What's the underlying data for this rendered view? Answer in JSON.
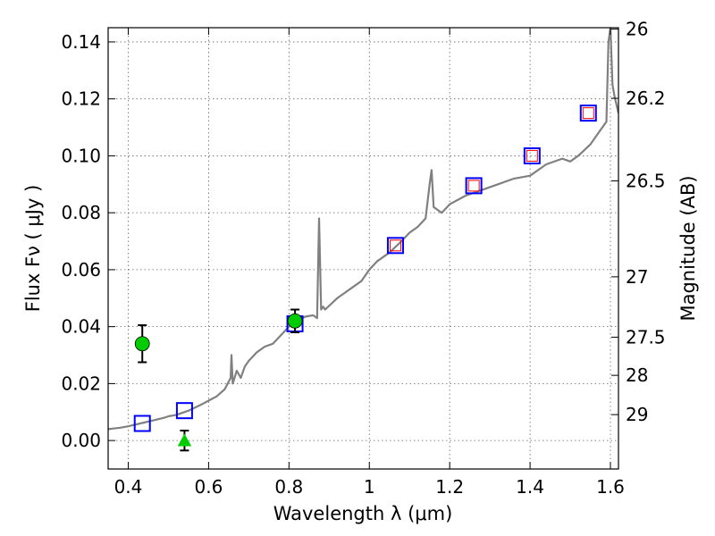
{
  "chart_data": {
    "type": "scatter",
    "title": "",
    "xlabel": "Wavelength  λ (μm)",
    "ylabel": "Flux  Fν  ( μJy )",
    "y2label": "Magnitude (AB)",
    "xlim": [
      0.35,
      1.62
    ],
    "ylim": [
      -0.01,
      0.145
    ],
    "grid": true,
    "x_ticks": [
      0.4,
      0.6,
      0.8,
      1.0,
      1.2,
      1.4,
      1.6
    ],
    "x_tick_labels": [
      "0.4",
      "0.6",
      "0.8",
      "1",
      "1.2",
      "1.4",
      "1.6"
    ],
    "y_ticks": [
      0.0,
      0.02,
      0.04,
      0.06,
      0.08,
      0.1,
      0.12,
      0.14
    ],
    "y_tick_labels": [
      "0.00",
      "0.02",
      "0.04",
      "0.06",
      "0.08",
      "0.10",
      "0.12",
      "0.14"
    ],
    "y2_ticks": [
      {
        "flux": 0.1445,
        "label": "26"
      },
      {
        "flux": 0.1202,
        "label": "26.2"
      },
      {
        "flux": 0.0912,
        "label": "26.5"
      },
      {
        "flux": 0.0575,
        "label": "27"
      },
      {
        "flux": 0.0363,
        "label": "27.5"
      },
      {
        "flux": 0.0229,
        "label": "28"
      },
      {
        "flux": 0.0091,
        "label": "29"
      }
    ],
    "series": [
      {
        "name": "model spectrum",
        "kind": "line",
        "color": "#808080",
        "x": [
          0.35,
          0.38,
          0.4,
          0.43,
          0.46,
          0.49,
          0.5,
          0.52,
          0.55,
          0.58,
          0.6,
          0.62,
          0.64,
          0.655,
          0.657,
          0.66,
          0.67,
          0.68,
          0.69,
          0.7,
          0.72,
          0.74,
          0.76,
          0.78,
          0.8,
          0.82,
          0.84,
          0.86,
          0.87,
          0.875,
          0.88,
          0.885,
          0.89,
          0.92,
          0.95,
          0.98,
          1.0,
          1.02,
          1.05,
          1.08,
          1.1,
          1.12,
          1.14,
          1.15,
          1.155,
          1.16,
          1.17,
          1.18,
          1.2,
          1.24,
          1.28,
          1.32,
          1.36,
          1.4,
          1.44,
          1.48,
          1.5,
          1.52,
          1.55,
          1.57,
          1.59,
          1.595,
          1.6,
          1.605,
          1.61,
          1.62
        ],
        "y": [
          0.004,
          0.0045,
          0.005,
          0.006,
          0.007,
          0.008,
          0.0085,
          0.009,
          0.0105,
          0.0125,
          0.014,
          0.0155,
          0.018,
          0.022,
          0.03,
          0.02,
          0.0245,
          0.022,
          0.026,
          0.028,
          0.031,
          0.033,
          0.034,
          0.037,
          0.04,
          0.042,
          0.0435,
          0.044,
          0.043,
          0.078,
          0.046,
          0.047,
          0.046,
          0.05,
          0.053,
          0.056,
          0.06,
          0.063,
          0.066,
          0.07,
          0.073,
          0.075,
          0.078,
          0.09,
          0.095,
          0.082,
          0.081,
          0.08,
          0.083,
          0.086,
          0.088,
          0.09,
          0.092,
          0.093,
          0.097,
          0.099,
          0.098,
          0.1,
          0.104,
          0.108,
          0.112,
          0.14,
          0.145,
          0.125,
          0.121,
          0.115
        ]
      },
      {
        "name": "blue open squares",
        "kind": "marker",
        "marker": "square-open",
        "color": "#0000ff",
        "x": [
          0.435,
          0.54,
          0.815,
          1.065,
          1.26,
          1.405,
          1.545
        ],
        "y": [
          0.006,
          0.0105,
          0.041,
          0.0685,
          0.0895,
          0.1,
          0.115
        ]
      },
      {
        "name": "red small squares",
        "kind": "marker",
        "marker": "square-open-small",
        "color": "#ff0000",
        "x": [
          1.065,
          1.26,
          1.405,
          1.545
        ],
        "y": [
          0.0685,
          0.0895,
          0.1,
          0.115
        ]
      },
      {
        "name": "green circles",
        "kind": "marker",
        "marker": "circle-filled",
        "color": "#00cc00",
        "x": [
          0.435,
          0.815
        ],
        "y": [
          0.034,
          0.042
        ],
        "err": [
          0.0065,
          0.004
        ]
      },
      {
        "name": "green triangle",
        "kind": "marker",
        "marker": "triangle-filled",
        "color": "#00cc00",
        "x": [
          0.54
        ],
        "y": [
          0.0
        ],
        "err": [
          0.0035
        ]
      }
    ]
  }
}
